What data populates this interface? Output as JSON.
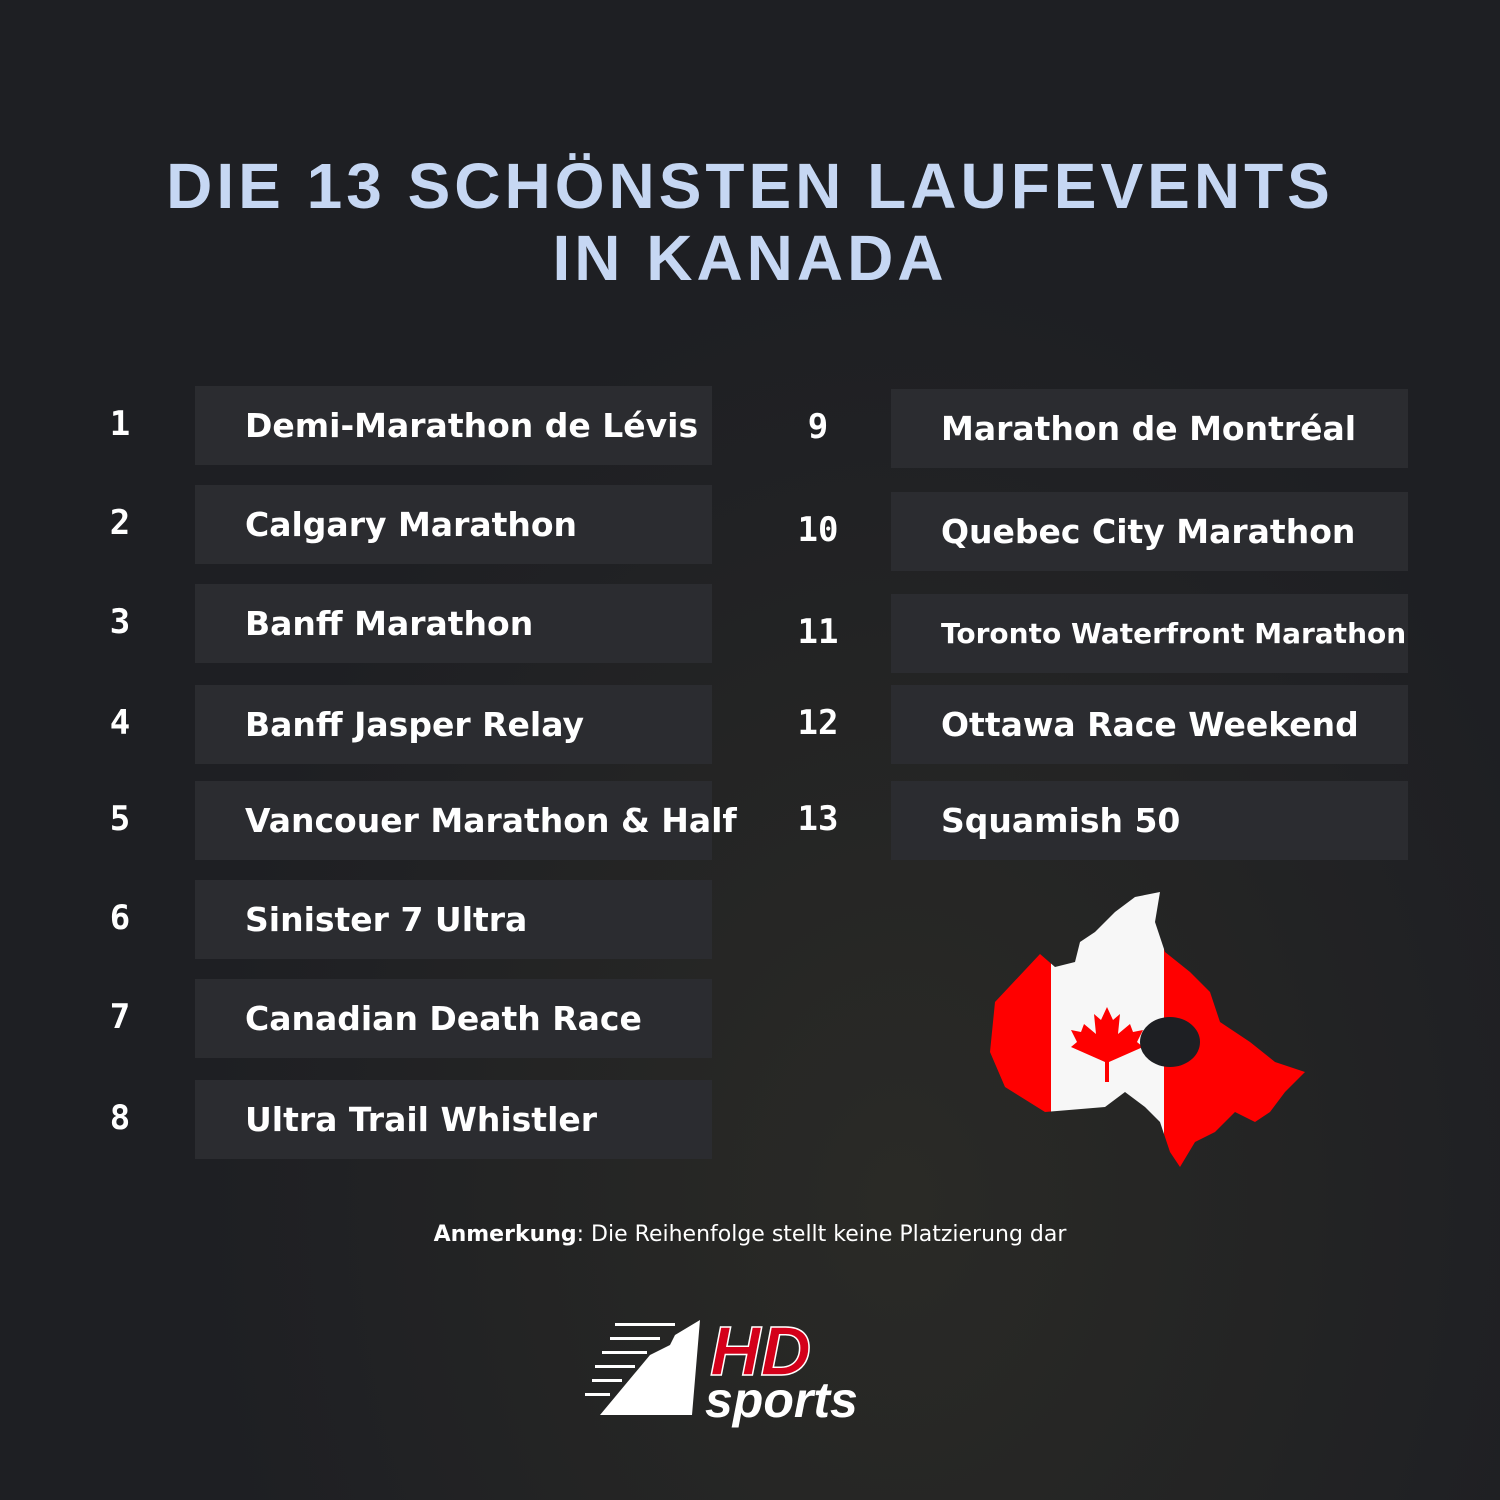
{
  "title_line1": "DIE 13 SCHÖNSTEN LAUFEVENTS",
  "title_line2": "IN KANADA",
  "events": [
    {
      "num": "1",
      "name": "Demi-Marathon de Lévis"
    },
    {
      "num": "2",
      "name": "Calgary Marathon"
    },
    {
      "num": "3",
      "name": "Banff Marathon"
    },
    {
      "num": "4",
      "name": "Banff Jasper Relay"
    },
    {
      "num": "5",
      "name": "Vancouer Marathon & Half"
    },
    {
      "num": "6",
      "name": "Sinister 7 Ultra"
    },
    {
      "num": "7",
      "name": "Canadian Death Race"
    },
    {
      "num": "8",
      "name": "Ultra Trail Whistler"
    },
    {
      "num": "9",
      "name": "Marathon de Montréal"
    },
    {
      "num": "10",
      "name": "Quebec City Marathon"
    },
    {
      "num": "11",
      "name": "Toronto Waterfront Marathon"
    },
    {
      "num": "12",
      "name": "Ottawa Race Weekend"
    },
    {
      "num": "13",
      "name": "Squamish 50"
    }
  ],
  "note": {
    "label": "Anmerkung",
    "text": ": Die Reihenfolge stellt keine Platzierung dar"
  },
  "logo": {
    "hd": "HD",
    "sports": "sports"
  },
  "colors": {
    "title": "#c6d7f3",
    "box": "#2b2c30",
    "flag_red": "#ff0000",
    "logo_red": "#d4001a"
  }
}
